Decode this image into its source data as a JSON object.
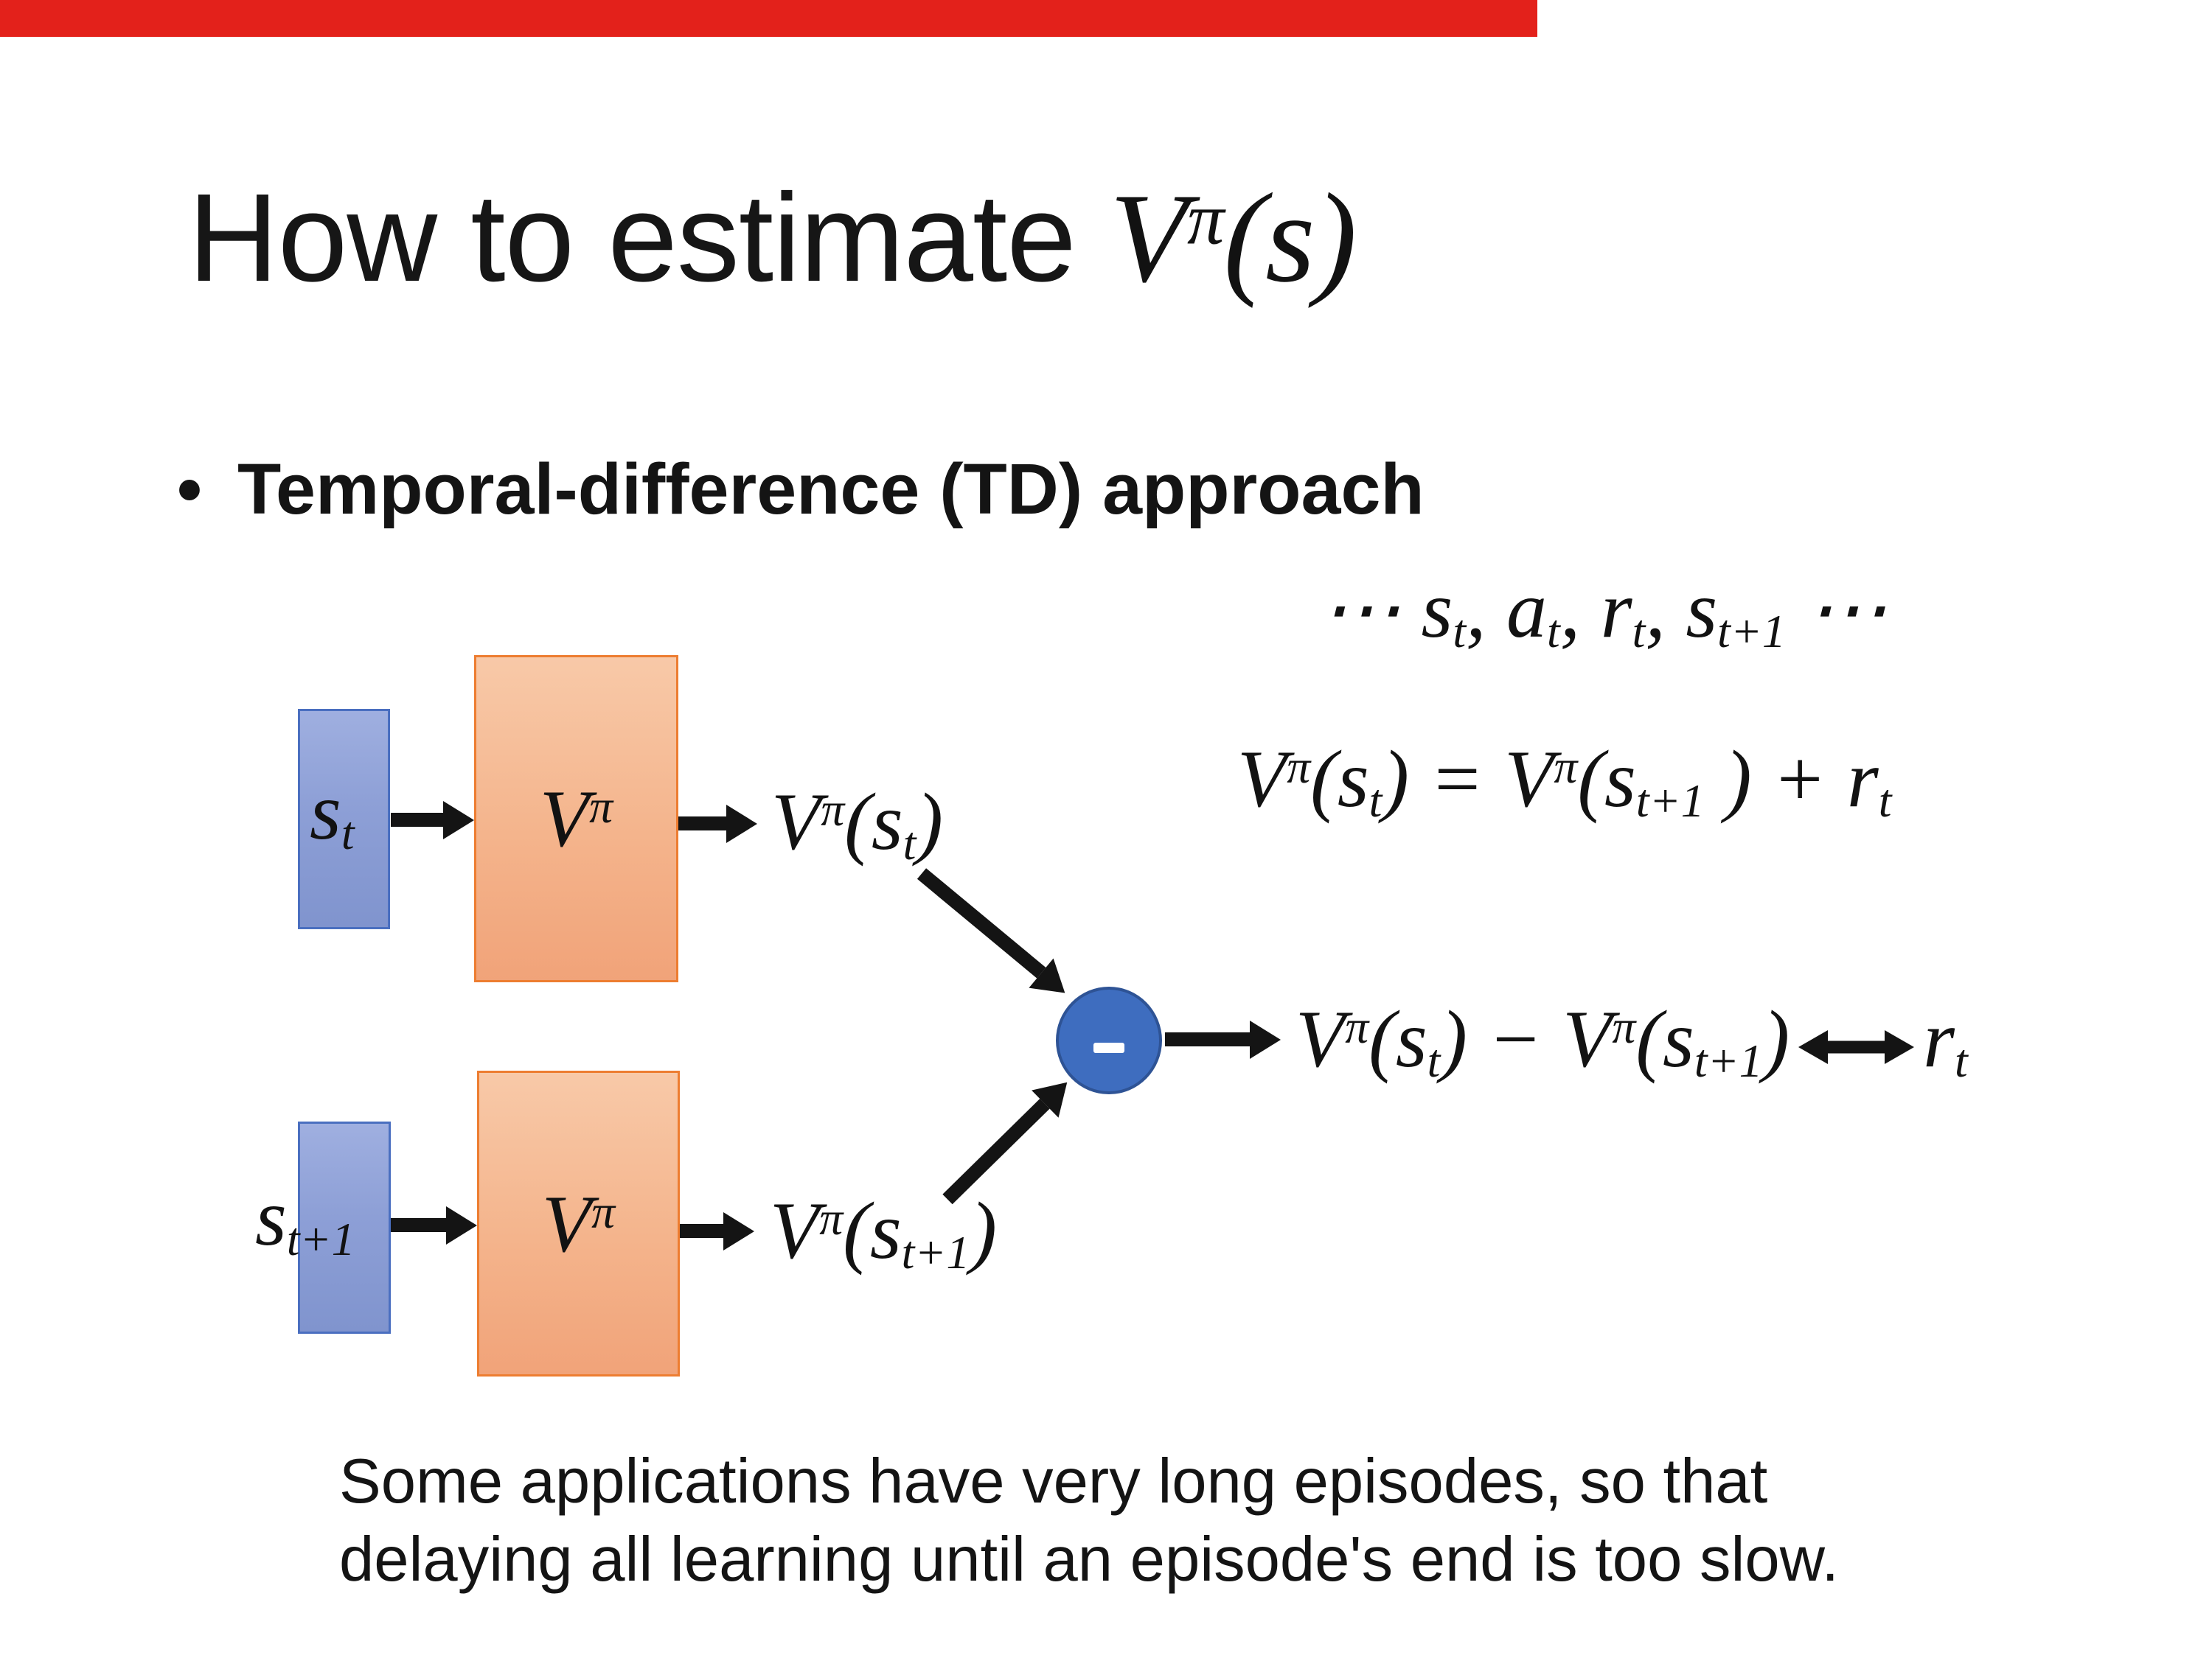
{
  "title": {
    "prefix": "How to estimate ",
    "math": [
      {
        "k": "i",
        "v": "V"
      },
      {
        "k": "sup",
        "v": "π"
      },
      {
        "k": "i",
        "v": "("
      },
      {
        "k": "i",
        "v": "s"
      },
      {
        "k": "i",
        "v": ")"
      }
    ]
  },
  "bullet": {
    "marker": "•",
    "label": "Temporal-difference (TD) approach"
  },
  "trajectory": [
    {
      "k": "i",
      "v": "⋯ "
    },
    {
      "k": "i",
      "v": "s"
    },
    {
      "k": "sub",
      "v": "t"
    },
    {
      "k": "i",
      "v": ", "
    },
    {
      "k": "i",
      "v": "a"
    },
    {
      "k": "sub",
      "v": "t"
    },
    {
      "k": "i",
      "v": ", "
    },
    {
      "k": "i",
      "v": "r"
    },
    {
      "k": "sub",
      "v": "t"
    },
    {
      "k": "i",
      "v": ", "
    },
    {
      "k": "i",
      "v": "s"
    },
    {
      "k": "sub",
      "v": "t+1"
    },
    {
      "k": "i",
      "v": " ⋯"
    }
  ],
  "equation": [
    {
      "k": "i",
      "v": "V"
    },
    {
      "k": "sup",
      "v": "π"
    },
    {
      "k": "i",
      "v": "("
    },
    {
      "k": "i",
      "v": "s"
    },
    {
      "k": "sub",
      "v": "t"
    },
    {
      "k": "i",
      "v": ") = "
    },
    {
      "k": "i",
      "v": "V"
    },
    {
      "k": "sup",
      "v": "π"
    },
    {
      "k": "i",
      "v": "("
    },
    {
      "k": "i",
      "v": "s"
    },
    {
      "k": "sub",
      "v": "t+1"
    },
    {
      "k": "i",
      "v": " ) + "
    },
    {
      "k": "i",
      "v": "r"
    },
    {
      "k": "sub",
      "v": "t"
    }
  ],
  "diagram": {
    "state1": [
      {
        "k": "i",
        "v": "s"
      },
      {
        "k": "sub",
        "v": "t"
      }
    ],
    "state2": [
      {
        "k": "i",
        "v": "s"
      },
      {
        "k": "sub",
        "v": "t+1"
      }
    ],
    "value_fn": [
      {
        "k": "i",
        "v": "V"
      },
      {
        "k": "sup",
        "v": "π"
      }
    ],
    "out1": [
      {
        "k": "i",
        "v": "V"
      },
      {
        "k": "sup",
        "v": "π"
      },
      {
        "k": "i",
        "v": "("
      },
      {
        "k": "i",
        "v": "s"
      },
      {
        "k": "sub",
        "v": "t"
      },
      {
        "k": "i",
        "v": ")"
      }
    ],
    "out2": [
      {
        "k": "i",
        "v": "V"
      },
      {
        "k": "sup",
        "v": "π"
      },
      {
        "k": "i",
        "v": "("
      },
      {
        "k": "i",
        "v": "s"
      },
      {
        "k": "sub",
        "v": "t+1"
      },
      {
        "k": "i",
        "v": ")"
      }
    ],
    "subtract_symbol": "-"
  },
  "td_output": {
    "expr": [
      {
        "k": "i",
        "v": "V"
      },
      {
        "k": "sup",
        "v": "π"
      },
      {
        "k": "i",
        "v": "("
      },
      {
        "k": "i",
        "v": "s"
      },
      {
        "k": "sub",
        "v": "t"
      },
      {
        "k": "i",
        "v": ") − "
      },
      {
        "k": "i",
        "v": "V"
      },
      {
        "k": "sup",
        "v": "π"
      },
      {
        "k": "i",
        "v": "("
      },
      {
        "k": "i",
        "v": "s"
      },
      {
        "k": "sub",
        "v": "t+1"
      },
      {
        "k": "i",
        "v": ")"
      }
    ],
    "reward": [
      {
        "k": "i",
        "v": "r"
      },
      {
        "k": "sub",
        "v": "t"
      }
    ]
  },
  "note": {
    "line1": "Some applications have very long episodes, so that",
    "line2": "delaying all learning until an episode's end is too slow."
  },
  "colors": {
    "background": "#ffffff",
    "text": "#141414",
    "red_bar": "#e3211b",
    "state_box_fill_top": "#9fafe0",
    "state_box_fill_bottom": "#8094ce",
    "state_box_border": "#4a6fc0",
    "value_box_fill_top": "#f8c9a8",
    "value_box_fill_bottom": "#f1a379",
    "value_box_border": "#ed7d31",
    "subtract_node_fill": "#3e6dbf",
    "subtract_node_border": "#2e5395",
    "arrow": "#141414"
  }
}
